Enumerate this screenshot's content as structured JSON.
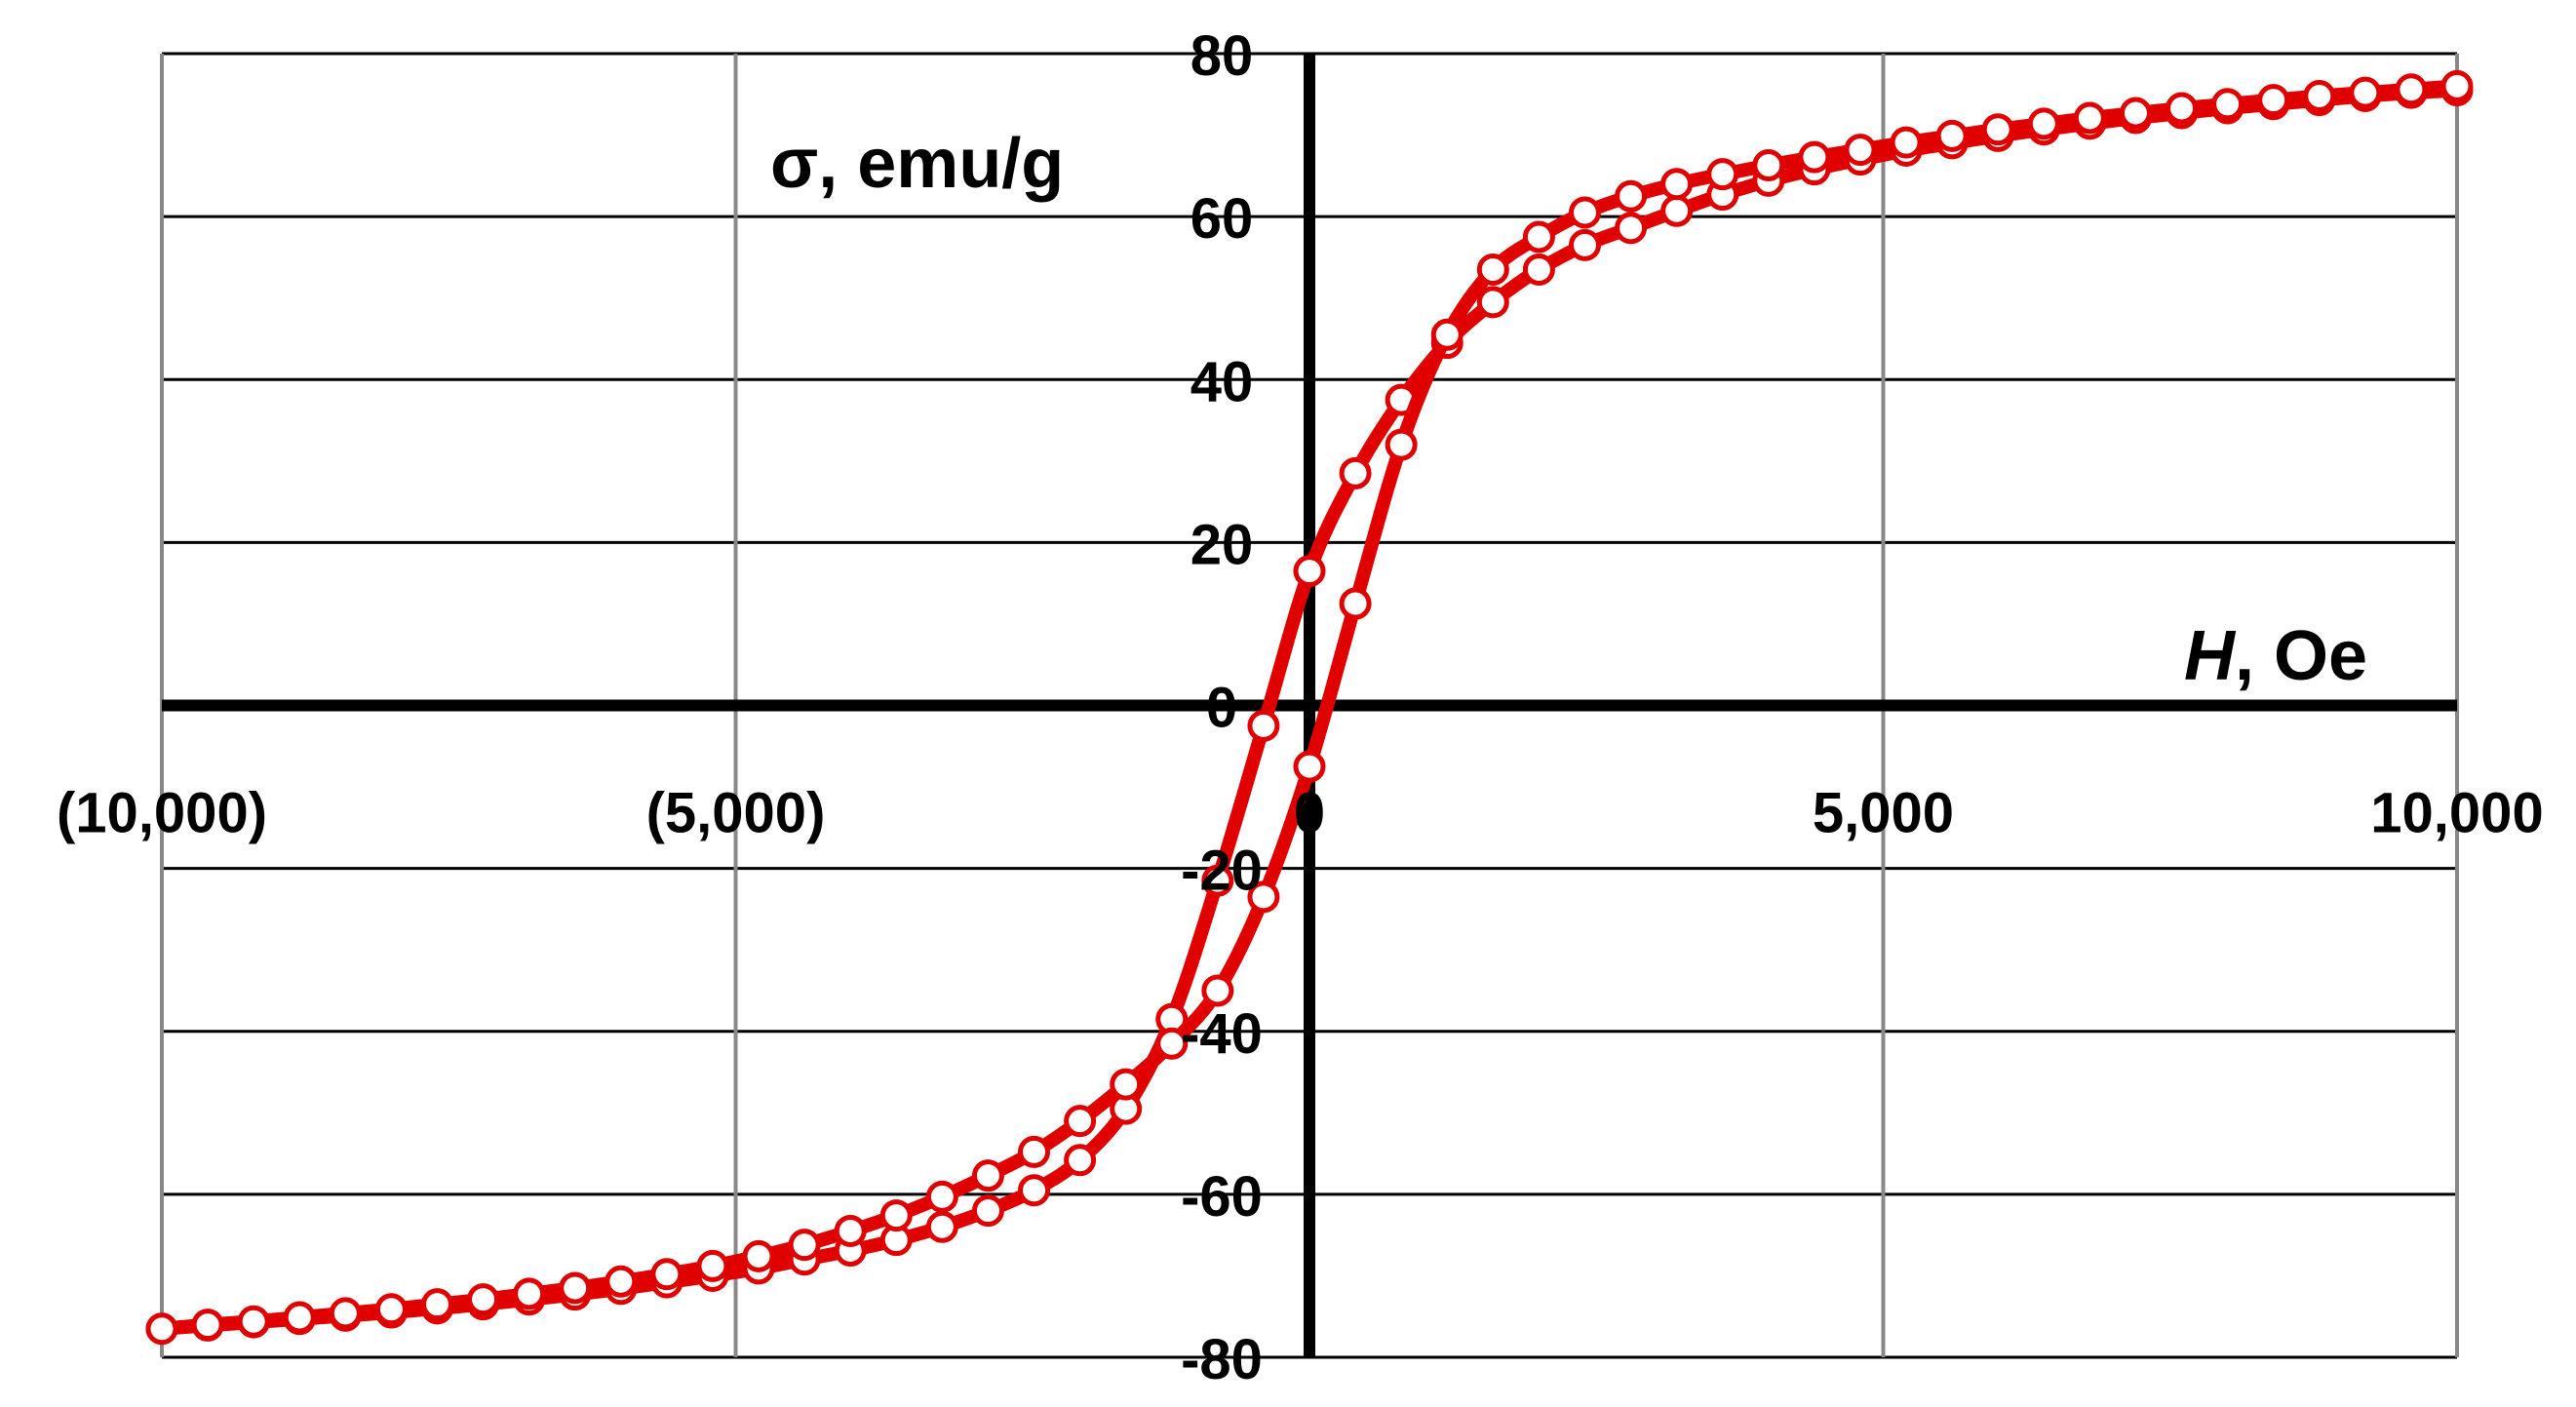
{
  "chart_data": {
    "type": "scatter",
    "title": "",
    "xlabel_italic": "H",
    "xlabel_rest": ", Oe",
    "ylabel": "σ, emu/g",
    "xlim": [
      -10000,
      10000
    ],
    "ylim": [
      -80,
      80
    ],
    "x_ticks": [
      -10000,
      -5000,
      0,
      5000,
      10000
    ],
    "x_tick_labels": [
      "(10,000)",
      "(5,000)",
      "0",
      "5,000",
      "10,000"
    ],
    "y_ticks": [
      -80,
      -60,
      -40,
      -20,
      0,
      20,
      40,
      60,
      80
    ],
    "y_tick_labels": [
      "-80",
      "-60",
      "-40",
      "-20",
      "0",
      "20",
      "40",
      "60",
      "80"
    ],
    "grid": true,
    "legend": "none",
    "colors": {
      "series": "#e00000",
      "axis": "#000000",
      "grid": "#000000",
      "vgrid": "#888888"
    },
    "series": [
      {
        "x": [
          10000,
          9600,
          9200,
          8800,
          8400,
          8000,
          7600,
          7200,
          6800,
          6400,
          6000,
          5600,
          5200,
          4800,
          4400,
          4000,
          3600,
          3200,
          2800,
          2400,
          2000,
          1600,
          1200,
          800,
          400,
          0,
          -400,
          -800,
          -1200,
          -1600,
          -2000,
          -2400,
          -2800,
          -3200,
          -3600,
          -4000,
          -4400,
          -4800,
          -5200,
          -5600,
          -6000,
          -6400,
          -6800,
          -7200,
          -7600,
          -8000,
          -8400,
          -8800,
          -9200,
          -9600,
          -10000
        ],
        "y": [
          75.5,
          75.2,
          74.8,
          74.3,
          73.8,
          73.3,
          72.7,
          72.1,
          71.4,
          70.7,
          69.9,
          69.0,
          68.1,
          67.0,
          65.8,
          64.4,
          62.7,
          60.7,
          58.6,
          56.5,
          53.5,
          49.5,
          44.5,
          37.5,
          28.5,
          16.5,
          -2.5,
          -21.5,
          -38.5,
          -49.5,
          -55.8,
          -59.5,
          -62.0,
          -64.0,
          -65.6,
          -66.9,
          -68.0,
          -69.1,
          -70.0,
          -70.8,
          -71.6,
          -72.3,
          -72.9,
          -73.5,
          -74.0,
          -74.5,
          -74.9,
          -75.3,
          -75.7,
          -76.1,
          -76.5
        ]
      },
      {
        "x": [
          -10000,
          -9600,
          -9200,
          -8800,
          -8400,
          -8000,
          -7600,
          -7200,
          -6800,
          -6400,
          -6000,
          -5600,
          -5200,
          -4800,
          -4400,
          -4000,
          -3600,
          -3200,
          -2800,
          -2400,
          -2000,
          -1600,
          -1200,
          -800,
          -400,
          0,
          400,
          800,
          1200,
          1600,
          2000,
          2400,
          2800,
          3200,
          3600,
          4000,
          4400,
          4800,
          5200,
          5600,
          6000,
          6400,
          6800,
          7200,
          7600,
          8000,
          8400,
          8800,
          9200,
          9600,
          10000
        ],
        "y": [
          -76.5,
          -76.0,
          -75.6,
          -75.1,
          -74.6,
          -74.1,
          -73.5,
          -72.9,
          -72.2,
          -71.5,
          -70.7,
          -69.8,
          -68.8,
          -67.6,
          -66.2,
          -64.5,
          -62.6,
          -60.3,
          -57.7,
          -54.8,
          -51.0,
          -46.5,
          -41.5,
          -35.0,
          -23.5,
          -7.5,
          12.5,
          32.0,
          45.5,
          53.5,
          57.5,
          60.5,
          62.5,
          64.0,
          65.2,
          66.3,
          67.3,
          68.2,
          69.1,
          69.9,
          70.7,
          71.4,
          72.1,
          72.7,
          73.3,
          73.8,
          74.3,
          74.8,
          75.2,
          75.6,
          76.0
        ]
      }
    ]
  }
}
